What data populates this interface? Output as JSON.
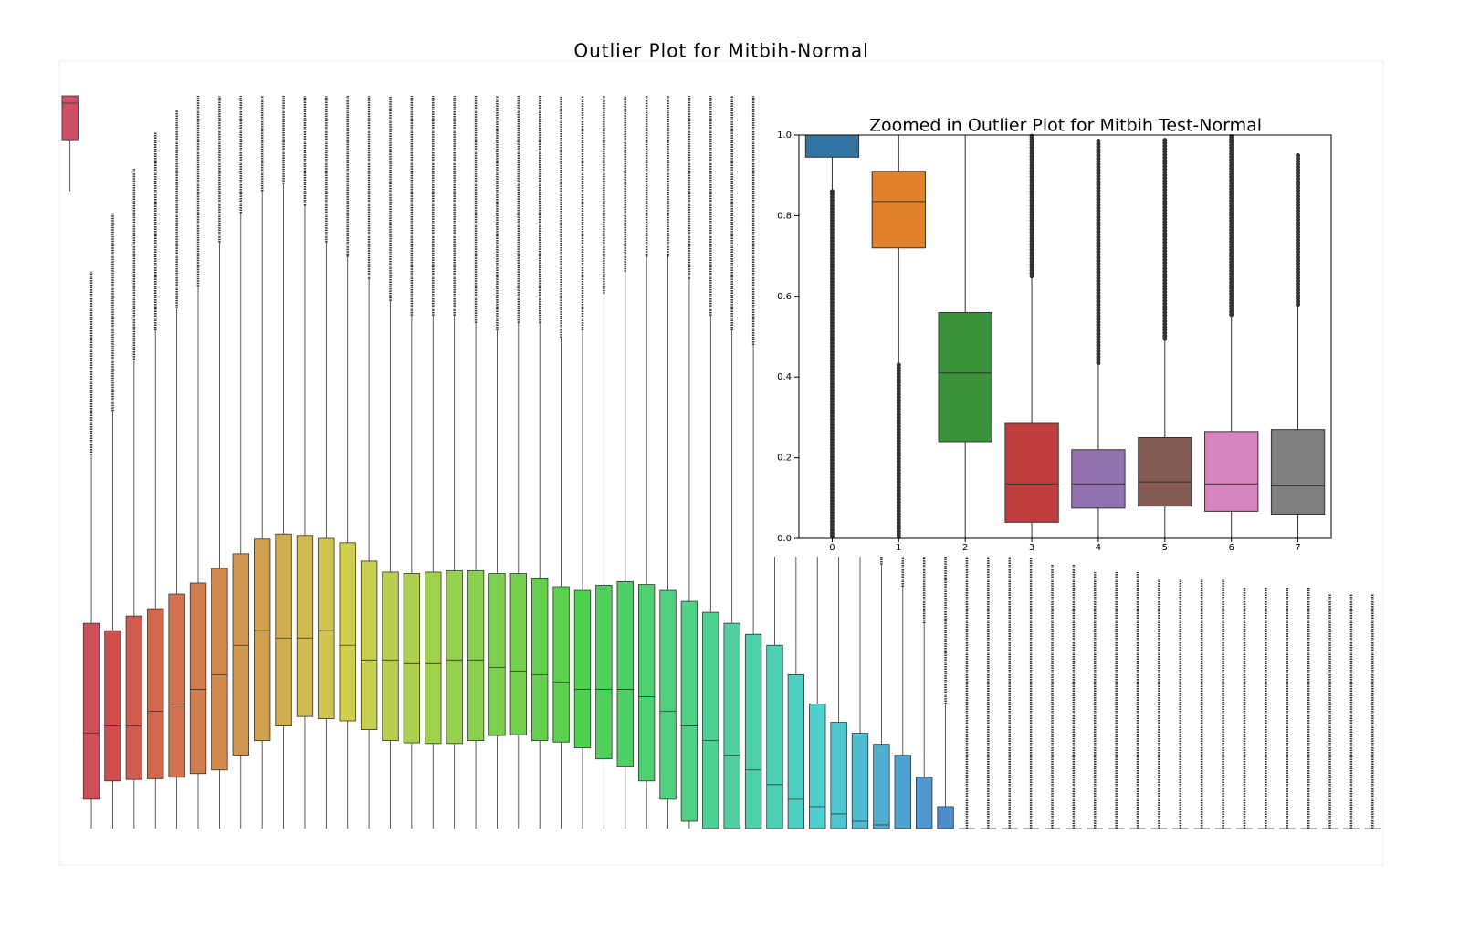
{
  "chart_data": [
    {
      "type": "box",
      "title": "Outlier Plot for Mitbih-Normal",
      "ylim": [
        0,
        1
      ],
      "categories": [
        null,
        null,
        null,
        null,
        null,
        null,
        null,
        null,
        null,
        null,
        null,
        null,
        null,
        null,
        null,
        null,
        null,
        null,
        null,
        null,
        null,
        null,
        null,
        null,
        null,
        null,
        null,
        null,
        null,
        null,
        null,
        null,
        null,
        null,
        null,
        null,
        null,
        null,
        null,
        null,
        null,
        null,
        null,
        null,
        null,
        null,
        null,
        null,
        null,
        null,
        null,
        null,
        null,
        null,
        null,
        null,
        null,
        null,
        null,
        null,
        null,
        null
      ],
      "q1": [
        0.94,
        0.04,
        0.065,
        0.067,
        0.068,
        0.07,
        0.075,
        0.08,
        0.1,
        0.12,
        0.14,
        0.153,
        0.15,
        0.147,
        0.135,
        0.12,
        0.117,
        0.116,
        0.116,
        0.12,
        0.127,
        0.128,
        0.12,
        0.118,
        0.11,
        0.095,
        0.085,
        0.065,
        0.04,
        0.01,
        0,
        0,
        0,
        0,
        0,
        0,
        0,
        0,
        0,
        0,
        0,
        0,
        0,
        0,
        0,
        0,
        0,
        0,
        0,
        0,
        0,
        0,
        0,
        0,
        0,
        0,
        0,
        0,
        0,
        0,
        0,
        0
      ],
      "median": [
        0.99,
        0.13,
        0.14,
        0.14,
        0.16,
        0.17,
        0.19,
        0.21,
        0.25,
        0.27,
        0.26,
        0.26,
        0.27,
        0.25,
        0.23,
        0.23,
        0.225,
        0.225,
        0.23,
        0.23,
        0.22,
        0.215,
        0.21,
        0.2,
        0.19,
        0.19,
        0.19,
        0.18,
        0.16,
        0.14,
        0.12,
        0.1,
        0.08,
        0.06,
        0.04,
        0.03,
        0.02,
        0.01,
        0.005,
        0,
        0,
        0,
        0,
        0,
        0,
        0,
        0,
        0,
        0,
        0,
        0,
        0,
        0,
        0,
        0,
        0,
        0,
        0,
        0,
        0,
        0,
        0
      ],
      "q3": [
        1.0,
        0.28,
        0.27,
        0.29,
        0.3,
        0.32,
        0.335,
        0.355,
        0.375,
        0.395,
        0.402,
        0.4,
        0.396,
        0.39,
        0.365,
        0.35,
        0.348,
        0.35,
        0.352,
        0.352,
        0.348,
        0.348,
        0.342,
        0.33,
        0.325,
        0.332,
        0.337,
        0.333,
        0.325,
        0.31,
        0.295,
        0.28,
        0.265,
        0.25,
        0.21,
        0.17,
        0.145,
        0.13,
        0.115,
        0.1,
        0.07,
        0.03,
        0,
        0,
        0,
        0,
        0,
        0,
        0,
        0,
        0,
        0,
        0,
        0,
        0,
        0,
        0,
        0,
        0,
        0,
        0,
        0
      ],
      "whisker_low": [
        0.87,
        0,
        0,
        0,
        0,
        0,
        0,
        0,
        0,
        0,
        0,
        0,
        0,
        0,
        0,
        0,
        0,
        0,
        0,
        0,
        0,
        0,
        0,
        0,
        0,
        0,
        0,
        0,
        0,
        0,
        0,
        0,
        0,
        0,
        0,
        0,
        0,
        0,
        0,
        0,
        0,
        0,
        0,
        0,
        0,
        0,
        0,
        0,
        0,
        0,
        0,
        0,
        0,
        0,
        0,
        0,
        0,
        0,
        0,
        0,
        0,
        0
      ],
      "whisker_high": [
        1.0,
        0.51,
        0.57,
        0.64,
        0.68,
        0.71,
        0.74,
        0.8,
        0.84,
        0.87,
        0.88,
        0.85,
        0.8,
        0.78,
        0.75,
        0.72,
        0.7,
        0.7,
        0.7,
        0.69,
        0.68,
        0.69,
        0.69,
        0.67,
        0.68,
        0.73,
        0.76,
        0.78,
        0.78,
        0.75,
        0.7,
        0.68,
        0.66,
        0.62,
        0.55,
        0.5,
        0.45,
        0.4,
        0.36,
        0.33,
        0.28,
        0.17,
        0,
        0,
        0,
        0,
        0,
        0,
        0,
        0,
        0,
        0,
        0,
        0,
        0,
        0,
        0,
        0,
        0,
        0,
        0,
        0
      ],
      "flier_max": [
        1.0,
        0.76,
        0.84,
        0.9,
        0.95,
        0.98,
        1,
        1,
        1,
        1,
        1,
        1,
        1,
        1,
        1,
        1,
        1,
        1,
        1,
        1,
        1,
        1,
        1,
        1,
        1,
        1,
        1,
        1,
        1,
        1,
        1,
        1,
        1,
        1,
        1,
        1,
        0.98,
        0.9,
        0.8,
        0.7,
        0.6,
        0.5,
        0.4,
        0.39,
        0.38,
        0.37,
        0.36,
        0.36,
        0.35,
        0.35,
        0.35,
        0.34,
        0.34,
        0.34,
        0.34,
        0.33,
        0.33,
        0.33,
        0.33,
        0.32,
        0.32,
        0.32
      ]
    },
    {
      "type": "box",
      "title": "Zoomed in Outlier Plot for Mitbih Test-Normal",
      "ylim": [
        0,
        1
      ],
      "yticks": [
        {
          "value": 0,
          "label": "0.0"
        },
        0.2,
        0.4,
        0.6,
        0.8,
        {
          "value": 1,
          "label": "1.0"
        }
      ],
      "categories": [
        "0",
        "1",
        "2",
        "3",
        "4",
        "5",
        "6",
        "7"
      ],
      "colors": [
        "#3274a1",
        "#e1812c",
        "#3a923a",
        "#c03d3e",
        "#9372b2",
        "#845b53",
        "#d684bd",
        "#7f7f7f"
      ],
      "q1": [
        0.945,
        0.72,
        0.24,
        0.04,
        0.075,
        0.08,
        0.067,
        0.06
      ],
      "median": [
        1.0,
        0.835,
        0.41,
        0.135,
        0.135,
        0.14,
        0.135,
        0.13
      ],
      "q3": [
        1.0,
        0.91,
        0.56,
        0.285,
        0.22,
        0.25,
        0.265,
        0.27
      ],
      "whisker_low": [
        0.86,
        0.43,
        0,
        0,
        0,
        0,
        0,
        0
      ],
      "whisker_high": [
        1.0,
        1.0,
        1.0,
        0.65,
        0.435,
        0.495,
        0.555,
        0.58
      ],
      "flier_low": [
        0,
        0,
        null,
        null,
        null,
        null,
        null,
        null
      ],
      "flier_high": [
        null,
        null,
        null,
        1.0,
        0.99,
        0.99,
        1.0,
        0.95
      ]
    }
  ]
}
